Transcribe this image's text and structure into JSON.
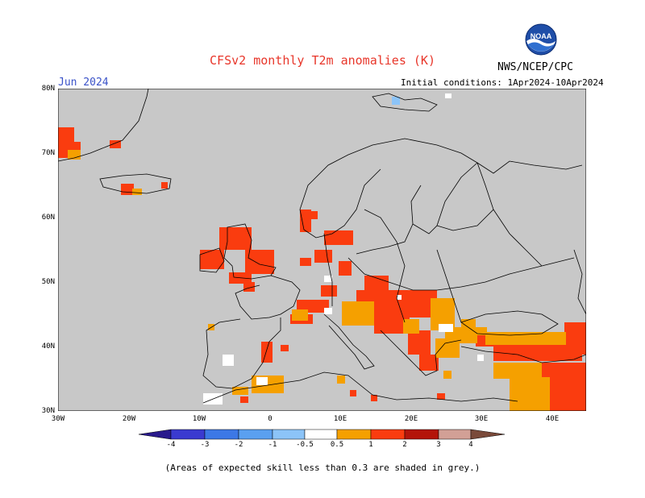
{
  "header": {
    "title": "CFSv2 monthly T2m anomalies (K)",
    "month": "Jun 2024",
    "initial_conditions": "Initial conditions: 1Apr2024-10Apr2024",
    "agency": "NWS/NCEP/CPC",
    "logo_text": "NOAA"
  },
  "map": {
    "background_color": "#c8c8c8",
    "lat_labels": [
      "80N",
      "70N",
      "60N",
      "50N",
      "40N",
      "30N"
    ],
    "lon_labels": [
      "30W",
      "20W",
      "10W",
      "0",
      "10E",
      "20E",
      "30E",
      "40E"
    ]
  },
  "colorbar": {
    "labels": [
      "-4",
      "-3",
      "-2",
      "-1",
      "-0.5",
      "0.5",
      "1",
      "2",
      "3",
      "4"
    ],
    "colors": [
      "#2a1a8c",
      "#3a3ad0",
      "#3c78e6",
      "#5aa0f0",
      "#8cc4f8",
      "#ffffff",
      "#f5a000",
      "#fa3c0f",
      "#b4140a",
      "#d2a096",
      "#7a4a3a"
    ]
  },
  "footnote": "(Areas of expected skill less than 0.3 are shaded in grey.)"
}
